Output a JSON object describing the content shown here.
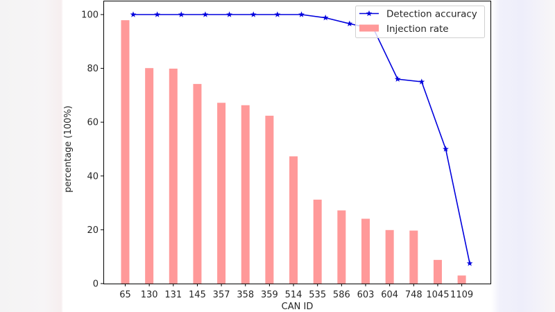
{
  "chart_data": {
    "type": "bar",
    "title": "",
    "xlabel": "CAN ID",
    "ylabel": "percentage (100%)",
    "ylim": [
      0,
      100
    ],
    "yticks": [
      0,
      20,
      40,
      60,
      80,
      100
    ],
    "grid": false,
    "legend_position": "upper right",
    "categories": [
      "65",
      "130",
      "131",
      "145",
      "357",
      "358",
      "359",
      "514",
      "535",
      "586",
      "603",
      "604",
      "748",
      "1045",
      "1109"
    ],
    "series": [
      {
        "name": "Detection accuracy",
        "type": "line",
        "marker": "star",
        "color": "#0000dd",
        "values": [
          100,
          100,
          100,
          100,
          100,
          100,
          100,
          100,
          98.8,
          96.6,
          94.7,
          76.0,
          75.0,
          50.0,
          7.5
        ]
      },
      {
        "name": "Injection rate",
        "type": "bar",
        "color": "#ff9999",
        "values": [
          97.9,
          80.1,
          79.9,
          74.2,
          67.2,
          66.3,
          62.4,
          47.3,
          31.2,
          27.2,
          24.1,
          19.9,
          19.7,
          8.8,
          3.0
        ]
      }
    ]
  },
  "legend": {
    "items": [
      {
        "label": "Detection accuracy"
      },
      {
        "label": "Injection rate"
      }
    ]
  },
  "axes": {
    "xlabel": "CAN ID",
    "ylabel": "percentage (100%)"
  }
}
